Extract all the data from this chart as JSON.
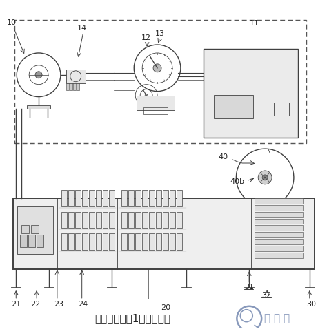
{
  "bg_color": "#ffffff",
  "line_color": "#404040",
  "dashed_color": "#555555",
  "light_gray": "#aaaaaa",
  "mid_gray": "#888888",
  "dark_gray": "#333333",
  "blue_gray": "#8899bb",
  "title_text": "本发明实施例1结构示意图",
  "logo_text": "日月辰",
  "title_fontsize": 11,
  "fig_width": 4.74,
  "fig_height": 4.78,
  "dpi": 100
}
